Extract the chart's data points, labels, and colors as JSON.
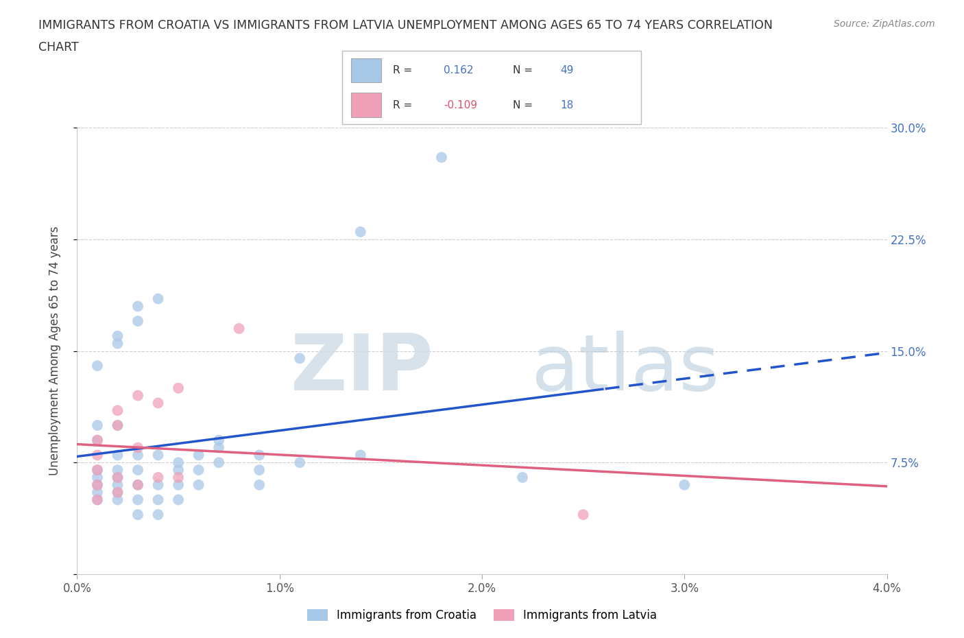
{
  "title_line1": "IMMIGRANTS FROM CROATIA VS IMMIGRANTS FROM LATVIA UNEMPLOYMENT AMONG AGES 65 TO 74 YEARS CORRELATION",
  "title_line2": "CHART",
  "source": "Source: ZipAtlas.com",
  "ylabel": "Unemployment Among Ages 65 to 74 years",
  "xlim": [
    0.0,
    0.04
  ],
  "ylim": [
    0.0,
    0.3
  ],
  "xtick_vals": [
    0.0,
    0.01,
    0.02,
    0.03,
    0.04
  ],
  "xtick_labels": [
    "0.0%",
    "1.0%",
    "2.0%",
    "3.0%",
    "4.0%"
  ],
  "ytick_vals": [
    0.0,
    0.075,
    0.15,
    0.225,
    0.3
  ],
  "ytick_labels": [
    "",
    "7.5%",
    "15.0%",
    "22.5%",
    "30.0%"
  ],
  "croatia_color": "#a8c8e8",
  "latvia_color": "#f0a0b8",
  "croatia_line_color": "#2255cc",
  "latvia_line_color": "#e06080",
  "croatia_R": "0.162",
  "croatia_N": "49",
  "latvia_R": "-0.109",
  "latvia_N": "18",
  "croatia_x": [
    0.001,
    0.001,
    0.001,
    0.001,
    0.001,
    0.001,
    0.002,
    0.002,
    0.002,
    0.002,
    0.002,
    0.002,
    0.002,
    0.003,
    0.003,
    0.003,
    0.003,
    0.003,
    0.003,
    0.004,
    0.004,
    0.004,
    0.004,
    0.005,
    0.005,
    0.005,
    0.006,
    0.006,
    0.007,
    0.007,
    0.009,
    0.009,
    0.011,
    0.011,
    0.014,
    0.014,
    0.018,
    0.022,
    0.03,
    0.001,
    0.001,
    0.002,
    0.002,
    0.003,
    0.004,
    0.005,
    0.006,
    0.007,
    0.009
  ],
  "croatia_y": [
    0.05,
    0.055,
    0.06,
    0.065,
    0.07,
    0.14,
    0.05,
    0.055,
    0.06,
    0.065,
    0.07,
    0.08,
    0.155,
    0.04,
    0.05,
    0.06,
    0.07,
    0.08,
    0.18,
    0.04,
    0.05,
    0.06,
    0.08,
    0.05,
    0.06,
    0.07,
    0.06,
    0.07,
    0.075,
    0.09,
    0.07,
    0.08,
    0.075,
    0.145,
    0.08,
    0.23,
    0.28,
    0.065,
    0.06,
    0.09,
    0.1,
    0.1,
    0.16,
    0.17,
    0.185,
    0.075,
    0.08,
    0.085,
    0.06
  ],
  "latvia_x": [
    0.001,
    0.001,
    0.001,
    0.001,
    0.001,
    0.002,
    0.002,
    0.002,
    0.002,
    0.003,
    0.003,
    0.003,
    0.004,
    0.004,
    0.005,
    0.005,
    0.008,
    0.025
  ],
  "latvia_y": [
    0.05,
    0.06,
    0.07,
    0.08,
    0.09,
    0.055,
    0.065,
    0.1,
    0.11,
    0.06,
    0.085,
    0.12,
    0.065,
    0.115,
    0.065,
    0.125,
    0.165,
    0.04
  ]
}
